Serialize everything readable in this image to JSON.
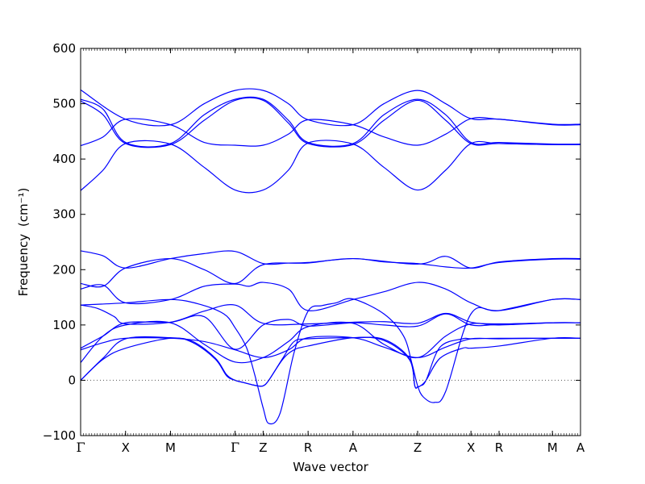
{
  "chart_data": {
    "type": "line",
    "title": "",
    "xlabel": "Wave vector",
    "ylabel": "Frequency",
    "ylabel_unit": "(cm⁻¹)",
    "ylim": [
      -100,
      600
    ],
    "y_ticks": [
      -100,
      0,
      100,
      200,
      300,
      400,
      500,
      600
    ],
    "x_ticks": [
      {
        "pos": 0,
        "label": "Γ"
      },
      {
        "pos": 0.8,
        "label": "X"
      },
      {
        "pos": 1.6,
        "label": "M"
      },
      {
        "pos": 2.75,
        "label": "Γ"
      },
      {
        "pos": 3.25,
        "label": "Z"
      },
      {
        "pos": 4.05,
        "label": "R"
      },
      {
        "pos": 4.85,
        "label": "A"
      },
      {
        "pos": 6.0,
        "label": "Z"
      },
      {
        "pos": 6.95,
        "label": "X"
      },
      {
        "pos": 7.45,
        "label": "R"
      },
      {
        "pos": 8.4,
        "label": "M"
      },
      {
        "pos": 8.9,
        "label": "A"
      }
    ],
    "xlim": [
      0,
      8.9
    ],
    "zero_line": true,
    "line_color": "#0000ff",
    "zero_line_color": "#555555",
    "series": [
      {
        "x": [
          0,
          0.8,
          1.6,
          2.2,
          2.75,
          3.25,
          3.7,
          4.05,
          4.85,
          5.4,
          6.0,
          6.5,
          6.95,
          7.45,
          8.4,
          8.9
        ],
        "y": [
          525,
          472,
          462,
          500,
          524,
          524,
          500,
          471,
          462,
          500,
          524,
          500,
          473,
          472,
          462,
          462
        ]
      },
      {
        "x": [
          0,
          0.4,
          0.8,
          1.6,
          2.2,
          2.75,
          3.25,
          3.7,
          4.05,
          4.85,
          5.4,
          6.0,
          6.5,
          6.95,
          7.45,
          8.4,
          8.9
        ],
        "y": [
          508,
          490,
          430,
          428,
          480,
          508,
          508,
          470,
          430,
          428,
          480,
          508,
          480,
          430,
          430,
          427,
          427
        ]
      },
      {
        "x": [
          0,
          0.4,
          0.8,
          1.6,
          2.2,
          2.75,
          3.25,
          3.7,
          4.05,
          4.85,
          5.4,
          6.0,
          6.5,
          6.95,
          7.45,
          8.4,
          8.9
        ],
        "y": [
          505,
          480,
          428,
          426,
          470,
          506,
          506,
          465,
          428,
          426,
          470,
          506,
          470,
          428,
          428,
          426,
          426
        ]
      },
      {
        "x": [
          0,
          0.4,
          0.8,
          1.6,
          2.2,
          2.75,
          3.25,
          3.7,
          4.05,
          4.85,
          5.4,
          6.0,
          6.5,
          6.95,
          7.45,
          8.4,
          8.9
        ],
        "y": [
          424,
          440,
          472,
          462,
          430,
          425,
          425,
          445,
          471,
          462,
          440,
          425,
          445,
          473,
          472,
          463,
          463
        ]
      },
      {
        "x": [
          0,
          0.4,
          0.8,
          1.6,
          2.2,
          2.75,
          3.25,
          3.7,
          4.05,
          4.85,
          5.4,
          6.0,
          6.5,
          6.95,
          7.45,
          8.4,
          8.9
        ],
        "y": [
          343,
          380,
          428,
          427,
          385,
          344,
          344,
          380,
          429,
          427,
          385,
          344,
          380,
          428,
          428,
          426,
          426
        ]
      },
      {
        "x": [
          0,
          0.4,
          0.8,
          1.6,
          2.2,
          2.75,
          3.25,
          3.7,
          4.05,
          4.85,
          5.4,
          6.0,
          6.5,
          6.95,
          7.45,
          8.4,
          8.9
        ],
        "y": [
          234,
          225,
          203,
          220,
          229,
          233,
          211,
          212,
          213,
          220,
          214,
          211,
          205,
          203,
          213,
          219,
          219
        ]
      },
      {
        "x": [
          0,
          0.4,
          0.8,
          1.6,
          2.2,
          2.75,
          3.25,
          4.05,
          4.85,
          6.0,
          6.5,
          6.95,
          7.45,
          8.4,
          8.9
        ],
        "y": [
          175,
          170,
          203,
          220,
          200,
          175,
          209,
          212,
          220,
          210,
          224,
          203,
          214,
          220,
          220
        ]
      },
      {
        "x": [
          0,
          0.4,
          0.8,
          1.6,
          2.2,
          2.75,
          3.0,
          3.25,
          3.7,
          4.05,
          4.85,
          5.4,
          6.0,
          6.5,
          6.95,
          7.45,
          8.4,
          8.9
        ],
        "y": [
          165,
          172,
          140,
          146,
          170,
          174,
          170,
          177,
          165,
          126,
          146,
          160,
          177,
          165,
          140,
          126,
          146,
          146
        ]
      },
      {
        "x": [
          0,
          0.8,
          1.6,
          2.1,
          2.55,
          2.75,
          2.95,
          3.1,
          3.25,
          3.35,
          3.55,
          3.8,
          4.05,
          4.3,
          4.55,
          4.85,
          5.4,
          5.75,
          5.9,
          6.0,
          6.1,
          6.3,
          6.5,
          6.95,
          7.45,
          8.4,
          8.9
        ],
        "y": [
          136,
          140,
          146,
          138,
          120,
          95,
          60,
          10,
          -50,
          -78,
          -60,
          50,
          125,
          135,
          140,
          147,
          120,
          80,
          30,
          -10,
          -30,
          -40,
          -20,
          120,
          126,
          146,
          146
        ]
      },
      {
        "x": [
          0,
          0.3,
          0.6,
          0.8,
          1.6,
          2.2,
          2.75,
          3.25,
          4.05,
          4.85,
          5.4,
          6.0,
          6.5,
          6.95,
          7.45,
          8.4,
          8.9
        ],
        "y": [
          136,
          130,
          115,
          102,
          105,
          125,
          136,
          103,
          102,
          105,
          106,
          103,
          121,
          105,
          102,
          104,
          104
        ]
      },
      {
        "x": [
          0,
          0.4,
          0.8,
          1.6,
          2.2,
          2.75,
          3.25,
          3.7,
          4.05,
          4.85,
          5.4,
          6.0,
          6.5,
          6.95,
          7.45,
          8.4,
          8.9
        ],
        "y": [
          58,
          80,
          104,
          105,
          115,
          56,
          100,
          110,
          98,
          104,
          100,
          98,
          120,
          100,
          101,
          104,
          104
        ]
      },
      {
        "x": [
          0,
          0.4,
          0.8,
          1.6,
          2.2,
          2.75,
          3.25,
          3.7,
          4.05,
          4.85,
          5.4,
          6.0,
          6.5,
          6.95,
          7.45,
          8.4,
          8.9
        ],
        "y": [
          32,
          80,
          100,
          104,
          65,
          33,
          41,
          70,
          97,
          103,
          65,
          41,
          80,
          102,
          100,
          104,
          104
        ]
      },
      {
        "x": [
          0,
          0.4,
          0.8,
          1.6,
          2.2,
          2.75,
          3.25,
          3.7,
          4.05,
          4.85,
          5.4,
          6.0,
          6.5,
          6.95,
          7.45,
          8.4,
          8.9
        ],
        "y": [
          55,
          68,
          76,
          76,
          70,
          55,
          41,
          55,
          77,
          77,
          60,
          41,
          60,
          75,
          75,
          76,
          76
        ]
      },
      {
        "x": [
          0,
          0.4,
          0.8,
          1.6,
          2.0,
          2.4,
          2.6,
          2.75,
          2.9,
          3.05,
          3.15,
          3.25,
          3.35,
          3.6,
          3.8,
          4.05,
          4.85,
          5.4,
          5.85,
          5.95,
          6.0,
          6.05,
          6.15,
          6.4,
          6.8,
          6.95,
          7.45,
          8.4,
          8.9
        ],
        "y": [
          0,
          40,
          75,
          77,
          70,
          40,
          10,
          0,
          -4,
          -8,
          -10,
          -10,
          0,
          40,
          70,
          75,
          77,
          74,
          40,
          -10,
          -12,
          -10,
          0,
          60,
          75,
          75,
          76,
          76,
          76
        ]
      },
      {
        "x": [
          0,
          0.4,
          0.8,
          1.6,
          2.0,
          2.4,
          2.6,
          2.75,
          2.9,
          3.05,
          3.15,
          3.25,
          3.35,
          3.6,
          3.8,
          4.05,
          4.85,
          5.4,
          5.85,
          5.95,
          6.0,
          6.05,
          6.15,
          6.4,
          6.8,
          6.95,
          7.45,
          8.4,
          8.9
        ],
        "y": [
          0,
          38,
          58,
          76,
          68,
          38,
          8,
          0,
          -4,
          -8,
          -10,
          -10,
          0,
          38,
          55,
          62,
          77,
          72,
          38,
          -10,
          -12,
          -10,
          0,
          40,
          58,
          58,
          62,
          76,
          76
        ]
      }
    ]
  }
}
